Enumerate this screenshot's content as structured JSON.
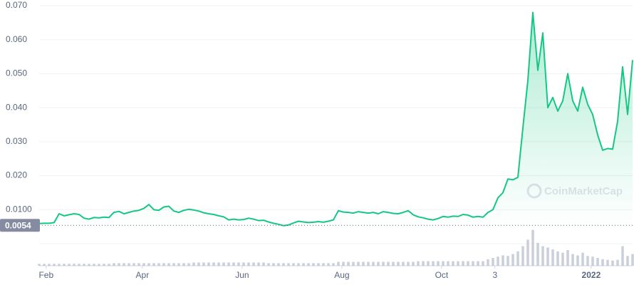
{
  "chart_data": {
    "type": "line",
    "watermark": "CoinMarketCap",
    "color": "#16c784",
    "volume_color": "#a6b0c3",
    "reference_line": 0.0054,
    "ylim": [
      0,
      0.07
    ],
    "yticks": [
      {
        "value": 0.01,
        "label": "0.0100"
      },
      {
        "value": 0.02,
        "label": "0.020"
      },
      {
        "value": 0.03,
        "label": "0.030"
      },
      {
        "value": 0.04,
        "label": "0.040"
      },
      {
        "value": 0.05,
        "label": "0.050"
      },
      {
        "value": 0.06,
        "label": "0.060"
      },
      {
        "value": 0.07,
        "label": "0.070"
      }
    ],
    "xlim": [
      0,
      119
    ],
    "xticks": [
      {
        "value": 1.4,
        "label": "Feb"
      },
      {
        "value": 20.7,
        "label": "Apr"
      },
      {
        "value": 40.7,
        "label": "Jun"
      },
      {
        "value": 60.7,
        "label": "Aug"
      },
      {
        "value": 80.7,
        "label": "Oct"
      },
      {
        "value": 91.4,
        "label": "3"
      },
      {
        "value": 110.7,
        "label": "2022"
      }
    ],
    "grid": true,
    "y2lim": [
      0,
      60
    ],
    "series": [
      {
        "name": "Price",
        "values": [
          0.0059,
          0.006,
          0.006,
          0.0062,
          0.0088,
          0.0082,
          0.0085,
          0.0088,
          0.0086,
          0.0075,
          0.0072,
          0.0077,
          0.0076,
          0.0078,
          0.0077,
          0.0092,
          0.0095,
          0.0088,
          0.0092,
          0.0096,
          0.0098,
          0.0104,
          0.0115,
          0.01,
          0.0098,
          0.0108,
          0.011,
          0.0096,
          0.0092,
          0.0098,
          0.0101,
          0.0099,
          0.0096,
          0.0091,
          0.0088,
          0.0086,
          0.0082,
          0.0079,
          0.007,
          0.0072,
          0.007,
          0.0071,
          0.0075,
          0.0072,
          0.0068,
          0.0069,
          0.0064,
          0.006,
          0.0057,
          0.0053,
          0.0055,
          0.0061,
          0.0066,
          0.0064,
          0.0062,
          0.0063,
          0.0065,
          0.0063,
          0.0066,
          0.007,
          0.0097,
          0.0093,
          0.0092,
          0.009,
          0.0094,
          0.0092,
          0.009,
          0.0092,
          0.0088,
          0.0094,
          0.0092,
          0.0089,
          0.0088,
          0.0092,
          0.0097,
          0.0085,
          0.0079,
          0.0076,
          0.0072,
          0.007,
          0.0074,
          0.008,
          0.0078,
          0.0081,
          0.008,
          0.0086,
          0.0084,
          0.0078,
          0.008,
          0.0078,
          0.0092,
          0.01,
          0.0135,
          0.015,
          0.019,
          0.0188,
          0.0195,
          0.034,
          0.048,
          0.068,
          0.051,
          0.062,
          0.04,
          0.043,
          0.039,
          0.042,
          0.05,
          0.042,
          0.039,
          0.046,
          0.041,
          0.038,
          0.032,
          0.0275,
          0.028,
          0.0278,
          0.036,
          0.052,
          0.038,
          0.054
        ]
      },
      {
        "name": "Volume",
        "axis": "y2",
        "values": [
          3,
          3,
          3,
          3,
          3,
          3,
          3,
          3,
          3,
          3,
          3,
          3,
          3,
          3,
          3,
          4,
          4,
          4,
          4,
          4,
          4,
          4,
          4,
          4,
          4,
          4,
          4,
          4,
          4,
          4,
          4,
          5,
          5,
          5,
          5,
          5,
          5,
          5,
          5,
          5,
          5,
          5,
          5,
          5,
          5,
          5,
          4,
          4,
          4,
          4,
          4,
          4,
          4,
          4,
          4,
          4,
          4,
          4,
          4,
          4,
          6,
          6,
          6,
          6,
          6,
          6,
          6,
          6,
          6,
          6,
          6,
          6,
          6,
          6,
          6,
          6,
          7,
          7,
          7,
          7,
          7,
          7,
          7,
          7,
          7,
          7,
          7,
          7,
          7,
          7,
          10,
          12,
          14,
          16,
          15,
          18,
          22,
          30,
          40,
          55,
          35,
          30,
          28,
          25,
          22,
          20,
          24,
          18,
          16,
          20,
          15,
          14,
          12,
          10,
          9,
          8,
          9,
          30,
          15,
          18
        ]
      }
    ]
  }
}
